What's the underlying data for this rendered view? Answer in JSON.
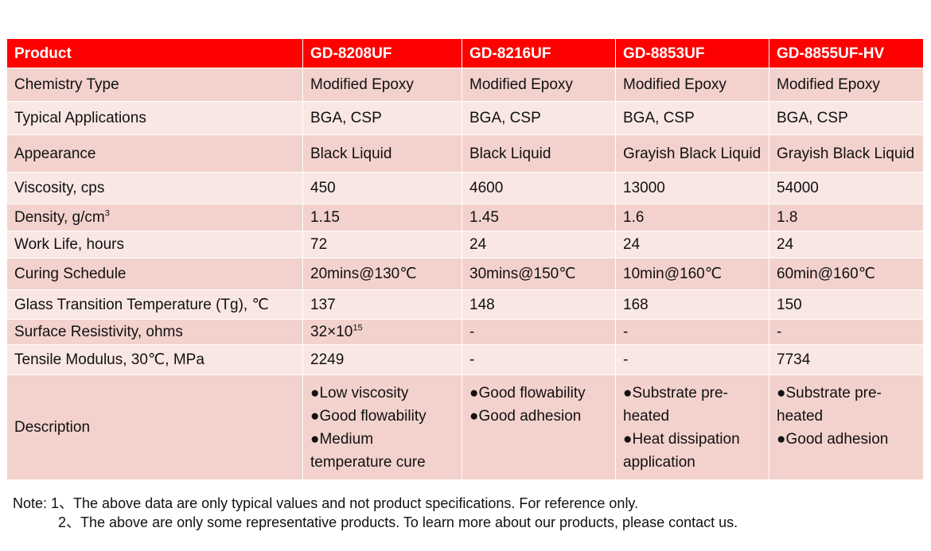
{
  "table": {
    "headers": [
      "Product",
      "GD-8208UF",
      "GD-8216UF",
      "GD-8853UF",
      "GD-8855UF-HV"
    ],
    "rows": [
      {
        "label": "Chemistry Type",
        "values": [
          "Modified Epoxy",
          "Modified Epoxy",
          "Modified Epoxy",
          "Modified Epoxy"
        ]
      },
      {
        "label": "Typical Applications",
        "values": [
          "BGA, CSP",
          "BGA, CSP",
          "BGA, CSP",
          "BGA, CSP"
        ]
      },
      {
        "label": "Appearance",
        "values": [
          "Black Liquid",
          "Black Liquid",
          "Grayish Black Liquid",
          "Grayish Black Liquid"
        ]
      },
      {
        "label": "Viscosity, cps",
        "values": [
          "450",
          "4600",
          "13000",
          "54000"
        ]
      },
      {
        "label_main": "Density, g/cm",
        "label_sup": "3",
        "values": [
          "1.15",
          "1.45",
          "1.6",
          "1.8"
        ]
      },
      {
        "label": "Work Life, hours",
        "values": [
          "72",
          "24",
          "24",
          "24"
        ]
      },
      {
        "label": "Curing Schedule",
        "values": [
          "20mins@130℃",
          "30mins@150℃",
          "10min@160℃",
          "60min@160℃"
        ]
      },
      {
        "label": "Glass Transition Temperature (Tg), ℃",
        "values": [
          "137",
          "148",
          "168",
          "150"
        ]
      },
      {
        "label": "Surface Resistivity, ohms",
        "values": [
          "-",
          "-",
          "-"
        ],
        "first_main": "32×10",
        "first_sup": "15"
      },
      {
        "label": "Tensile Modulus, 30℃, MPa",
        "values": [
          "2249",
          "-",
          "-",
          "7734"
        ]
      }
    ],
    "description": {
      "label": "Description",
      "cells": [
        [
          "●Low viscosity",
          "●Good flowability",
          "●Medium temperature cure"
        ],
        [
          "●Good flowability",
          "●Good adhesion"
        ],
        [
          "●Substrate pre-heated",
          "●Heat dissipation application"
        ],
        [
          "●Substrate pre-heated",
          "●Good adhesion"
        ]
      ]
    }
  },
  "note": {
    "line1": "Note: 1、The above data are only typical values and not product specifications. For reference only.",
    "line2": "2、The above are only some representative products. To learn more about our products, please contact us."
  },
  "colors": {
    "header_bg": "#ff0000",
    "row_dark": "#f3d2cd",
    "row_light": "#f9e7e4"
  }
}
